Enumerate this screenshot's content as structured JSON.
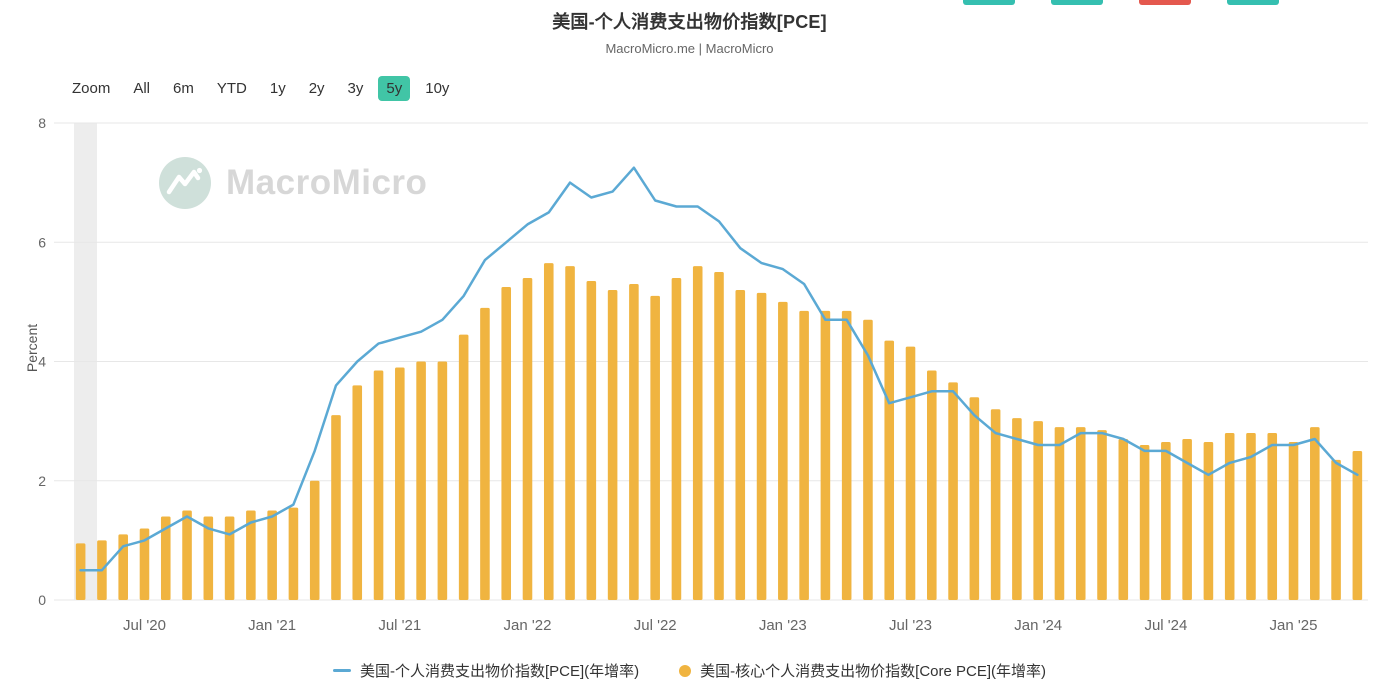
{
  "page": {
    "title": "美国-个人消费支出物价指数[PCE]",
    "subtitle": "MacroMicro.me | MacroMicro"
  },
  "top_chips": {
    "colors": [
      "#35bfb0",
      "#35bfb0",
      "#e4584e",
      "#35bfb0"
    ]
  },
  "toolbar": {
    "zoom_label": "Zoom",
    "selected": "5y",
    "selected_color": "#41c5a6",
    "buttons": [
      {
        "label": "All"
      },
      {
        "label": "6m"
      },
      {
        "label": "YTD"
      },
      {
        "label": "1y"
      },
      {
        "label": "2y"
      },
      {
        "label": "3y"
      },
      {
        "label": "5y"
      },
      {
        "label": "10y"
      }
    ]
  },
  "watermark": {
    "text": "MacroMicro"
  },
  "chart_data": {
    "type": "bar",
    "title": "美国-个人消费支出物价指数[PCE]",
    "xlabel": "",
    "ylabel": "Percent",
    "ylim": [
      0,
      8
    ],
    "yticks": [
      0,
      2,
      4,
      6,
      8
    ],
    "grid": true,
    "legend_position": "bottom",
    "x": [
      "2020-04",
      "2020-05",
      "2020-06",
      "2020-07",
      "2020-08",
      "2020-09",
      "2020-10",
      "2020-11",
      "2020-12",
      "2021-01",
      "2021-02",
      "2021-03",
      "2021-04",
      "2021-05",
      "2021-06",
      "2021-07",
      "2021-08",
      "2021-09",
      "2021-10",
      "2021-11",
      "2021-12",
      "2022-01",
      "2022-02",
      "2022-03",
      "2022-04",
      "2022-05",
      "2022-06",
      "2022-07",
      "2022-08",
      "2022-09",
      "2022-10",
      "2022-11",
      "2022-12",
      "2023-01",
      "2023-02",
      "2023-03",
      "2023-04",
      "2023-05",
      "2023-06",
      "2023-07",
      "2023-08",
      "2023-09",
      "2023-10",
      "2023-11",
      "2023-12",
      "2024-01",
      "2024-02",
      "2024-03",
      "2024-04",
      "2024-05",
      "2024-06",
      "2024-07",
      "2024-08",
      "2024-09",
      "2024-10",
      "2024-11",
      "2024-12",
      "2025-01",
      "2025-02",
      "2025-03",
      "2025-04"
    ],
    "xtick_indices": [
      3,
      9,
      15,
      21,
      27,
      33,
      39,
      45,
      51,
      57
    ],
    "xtick_labels": [
      "Jul '20",
      "Jan '21",
      "Jul '21",
      "Jan '22",
      "Jul '22",
      "Jan '23",
      "Jul '23",
      "Jan '24",
      "Jul '24",
      "Jan '25"
    ],
    "series": [
      {
        "name": "美国-个人消费支出物价指数[PCE](年增率)",
        "type": "line",
        "color": "#5BA9D4",
        "values": [
          0.5,
          0.5,
          0.9,
          1.0,
          1.2,
          1.4,
          1.2,
          1.1,
          1.3,
          1.4,
          1.6,
          2.5,
          3.6,
          4.0,
          4.3,
          4.4,
          4.5,
          4.7,
          5.1,
          5.7,
          6.0,
          6.3,
          6.5,
          7.0,
          6.75,
          6.85,
          7.25,
          6.7,
          6.6,
          6.6,
          6.35,
          5.9,
          5.65,
          5.55,
          5.3,
          4.7,
          4.7,
          4.1,
          3.3,
          3.4,
          3.5,
          3.5,
          3.1,
          2.8,
          2.7,
          2.6,
          2.6,
          2.8,
          2.8,
          2.7,
          2.5,
          2.5,
          2.3,
          2.1,
          2.3,
          2.4,
          2.6,
          2.6,
          2.7,
          2.3,
          2.1
        ]
      },
      {
        "name": "美国-核心个人消费支出物价指数[Core PCE](年增率)",
        "type": "bar",
        "color": "#F0B440",
        "values": [
          0.95,
          1.0,
          1.1,
          1.2,
          1.4,
          1.5,
          1.4,
          1.4,
          1.5,
          1.5,
          1.55,
          2.0,
          3.1,
          3.6,
          3.85,
          3.9,
          4.0,
          4.0,
          4.45,
          4.9,
          5.25,
          5.4,
          5.65,
          5.6,
          5.35,
          5.2,
          5.3,
          5.1,
          5.4,
          5.6,
          5.5,
          5.2,
          5.15,
          5.0,
          4.85,
          4.85,
          4.85,
          4.7,
          4.35,
          4.25,
          3.85,
          3.65,
          3.4,
          3.2,
          3.05,
          3.0,
          2.9,
          2.9,
          2.85,
          2.7,
          2.6,
          2.65,
          2.7,
          2.65,
          2.8,
          2.8,
          2.8,
          2.65,
          2.9,
          2.35,
          2.5
        ]
      }
    ],
    "plotband_left_color": "#ededed"
  },
  "legend": {
    "items": [
      {
        "marker": "line",
        "color": "#5BA9D4",
        "label": "美国-个人消费支出物价指数[PCE](年增率)"
      },
      {
        "marker": "circle",
        "color": "#F0B440",
        "label": "美国-核心个人消费支出物价指数[Core PCE](年增率)"
      }
    ]
  }
}
